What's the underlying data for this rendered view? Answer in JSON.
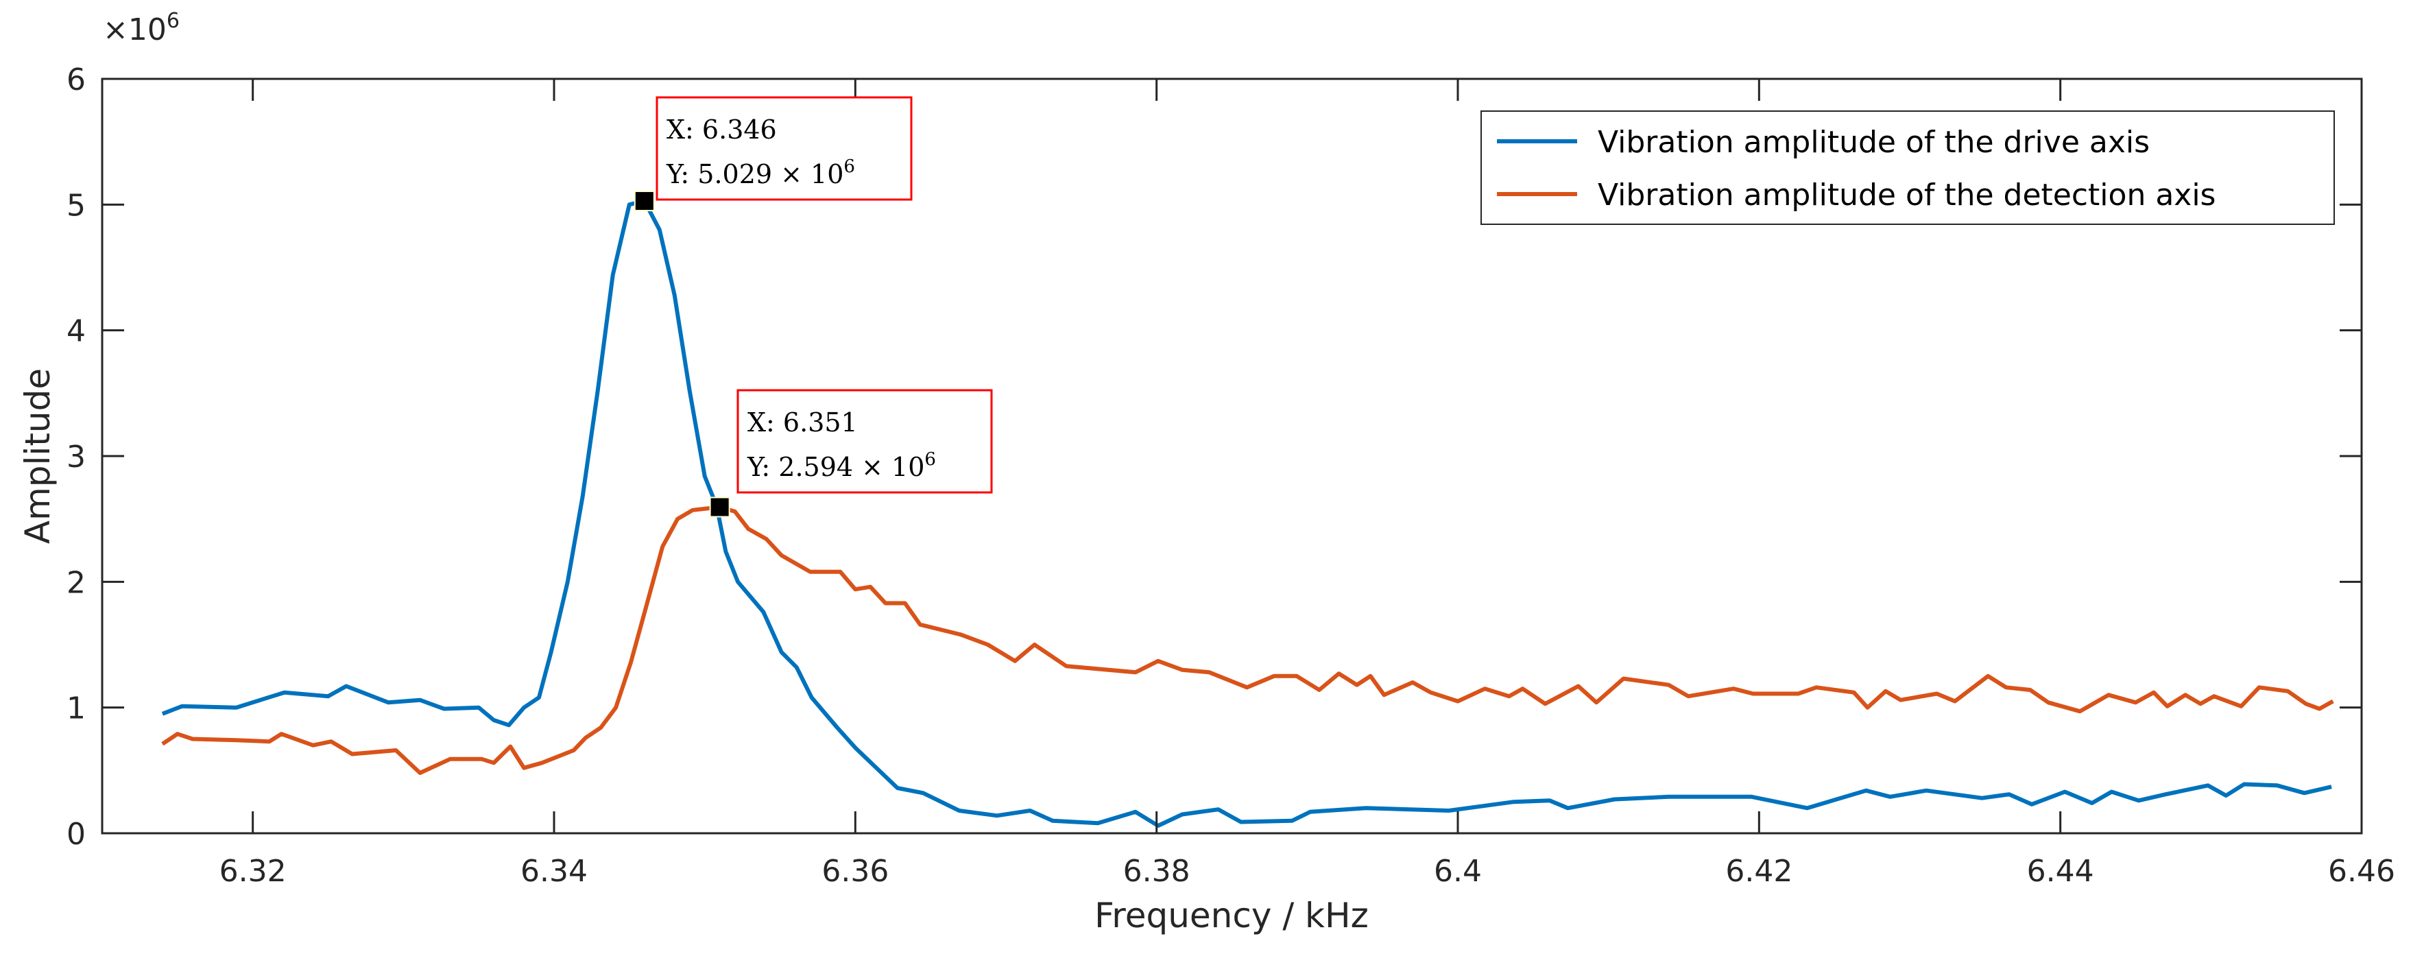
{
  "chart_data": {
    "type": "line",
    "title": "",
    "xlabel": "Frequency / kHz",
    "ylabel": "Amplitude",
    "y_exponent_label": "×10",
    "y_exponent": "6",
    "y_scale": 1000000,
    "xlim": [
      6.31,
      6.46
    ],
    "ylim": [
      0,
      6
    ],
    "xticks": [
      6.32,
      6.34,
      6.36,
      6.38,
      6.4,
      6.42,
      6.44,
      6.46
    ],
    "xtick_labels": [
      "6.32",
      "6.34",
      "6.36",
      "6.38",
      "6.4",
      "6.42",
      "6.44",
      "6.46"
    ],
    "yticks": [
      0,
      1,
      2,
      3,
      4,
      5,
      6
    ],
    "ytick_labels": [
      "0",
      "1",
      "2",
      "3",
      "4",
      "5",
      "6"
    ],
    "grid": false,
    "legend_position": "top-right",
    "series": [
      {
        "name": "Vibration amplitude of the drive axis",
        "color": "#0072BD",
        "x": [
          6.314,
          6.3153,
          6.3189,
          6.3221,
          6.325,
          6.3262,
          6.329,
          6.3311,
          6.3327,
          6.335,
          6.336,
          6.337,
          6.338,
          6.339,
          6.3398,
          6.3409,
          6.3419,
          6.3429,
          6.3439,
          6.345,
          6.346,
          6.347,
          6.348,
          6.349,
          6.35,
          6.3508,
          6.3514,
          6.3522,
          6.3539,
          6.3551,
          6.3561,
          6.3571,
          6.3588,
          6.36,
          6.3628,
          6.3645,
          6.3669,
          6.3694,
          6.3716,
          6.3731,
          6.3761,
          6.3786,
          6.3801,
          6.3817,
          6.3841,
          6.3856,
          6.389,
          6.3902,
          6.3939,
          6.3994,
          6.4037,
          6.4061,
          6.4073,
          6.4104,
          6.414,
          6.4195,
          6.4232,
          6.4271,
          6.4287,
          6.4311,
          6.4348,
          6.4366,
          6.4381,
          6.4403,
          6.4421,
          6.4434,
          6.4452,
          6.447,
          6.4498,
          6.451,
          6.4522,
          6.4544,
          6.4562,
          6.458
        ],
        "y": [
          0.95,
          1.01,
          1.0,
          1.12,
          1.09,
          1.17,
          1.04,
          1.06,
          0.99,
          1.0,
          0.9,
          0.86,
          1.0,
          1.08,
          1.44,
          2.0,
          2.68,
          3.52,
          4.44,
          5.0,
          5.029,
          4.8,
          4.28,
          3.52,
          2.84,
          2.6,
          2.24,
          2.0,
          1.76,
          1.44,
          1.32,
          1.08,
          0.84,
          0.68,
          0.36,
          0.32,
          0.18,
          0.14,
          0.18,
          0.1,
          0.08,
          0.17,
          0.06,
          0.15,
          0.19,
          0.09,
          0.1,
          0.17,
          0.2,
          0.18,
          0.25,
          0.26,
          0.2,
          0.27,
          0.29,
          0.29,
          0.2,
          0.34,
          0.29,
          0.34,
          0.28,
          0.31,
          0.23,
          0.33,
          0.24,
          0.33,
          0.26,
          0.31,
          0.38,
          0.3,
          0.39,
          0.38,
          0.32,
          0.37
        ]
      },
      {
        "name": "Vibration amplitude of the detection axis",
        "color": "#D95319",
        "x": [
          6.314,
          6.315,
          6.316,
          6.3189,
          6.3211,
          6.3219,
          6.324,
          6.3252,
          6.3266,
          6.3295,
          6.3311,
          6.3331,
          6.3352,
          6.336,
          6.3371,
          6.338,
          6.3392,
          6.3413,
          6.3421,
          6.3431,
          6.3441,
          6.3451,
          6.3462,
          6.3472,
          6.3482,
          6.3492,
          6.351,
          6.352,
          6.3529,
          6.3541,
          6.3551,
          6.357,
          6.359,
          6.36,
          6.361,
          6.362,
          6.3633,
          6.3643,
          6.367,
          6.3688,
          6.3706,
          6.3719,
          6.374,
          6.3786,
          6.3801,
          6.3817,
          6.3835,
          6.386,
          6.3878,
          6.3893,
          6.3908,
          6.3921,
          6.3933,
          6.3942,
          6.3951,
          6.397,
          6.3982,
          6.4,
          6.4018,
          6.4034,
          6.4043,
          6.4058,
          6.408,
          6.4092,
          6.411,
          6.414,
          6.4153,
          6.4183,
          6.4196,
          6.4226,
          6.4238,
          6.4263,
          6.4272,
          6.4284,
          6.4294,
          6.4318,
          6.433,
          6.4352,
          6.4364,
          6.438,
          6.4392,
          6.4413,
          6.4432,
          6.445,
          6.4462,
          6.4471,
          6.4483,
          6.4493,
          6.4502,
          6.452,
          6.4532,
          6.4551,
          6.4563,
          6.4572,
          6.4581
        ],
        "y": [
          0.71,
          0.79,
          0.75,
          0.74,
          0.73,
          0.79,
          0.7,
          0.73,
          0.63,
          0.66,
          0.48,
          0.59,
          0.59,
          0.56,
          0.69,
          0.52,
          0.56,
          0.66,
          0.76,
          0.84,
          1.0,
          1.36,
          1.84,
          2.28,
          2.5,
          2.57,
          2.594,
          2.56,
          2.42,
          2.34,
          2.21,
          2.08,
          2.08,
          1.94,
          1.96,
          1.83,
          1.83,
          1.66,
          1.58,
          1.5,
          1.37,
          1.5,
          1.33,
          1.28,
          1.37,
          1.3,
          1.28,
          1.16,
          1.25,
          1.25,
          1.14,
          1.27,
          1.18,
          1.25,
          1.1,
          1.2,
          1.12,
          1.05,
          1.15,
          1.09,
          1.15,
          1.03,
          1.17,
          1.04,
          1.23,
          1.18,
          1.09,
          1.15,
          1.11,
          1.11,
          1.16,
          1.12,
          1.0,
          1.13,
          1.06,
          1.11,
          1.05,
          1.25,
          1.16,
          1.14,
          1.04,
          0.97,
          1.1,
          1.04,
          1.12,
          1.01,
          1.1,
          1.03,
          1.09,
          1.01,
          1.16,
          1.13,
          1.03,
          0.99,
          1.05
        ]
      }
    ],
    "annotations": [
      {
        "x": 6.346,
        "y": 5.029,
        "x_text": "X: 6.346",
        "y_text": "Y: 5.029 × 10",
        "y_exp": "6"
      },
      {
        "x": 6.351,
        "y": 2.594,
        "x_text": "X: 6.351",
        "y_text": "Y: 2.594 × 10",
        "y_exp": "6"
      }
    ]
  }
}
